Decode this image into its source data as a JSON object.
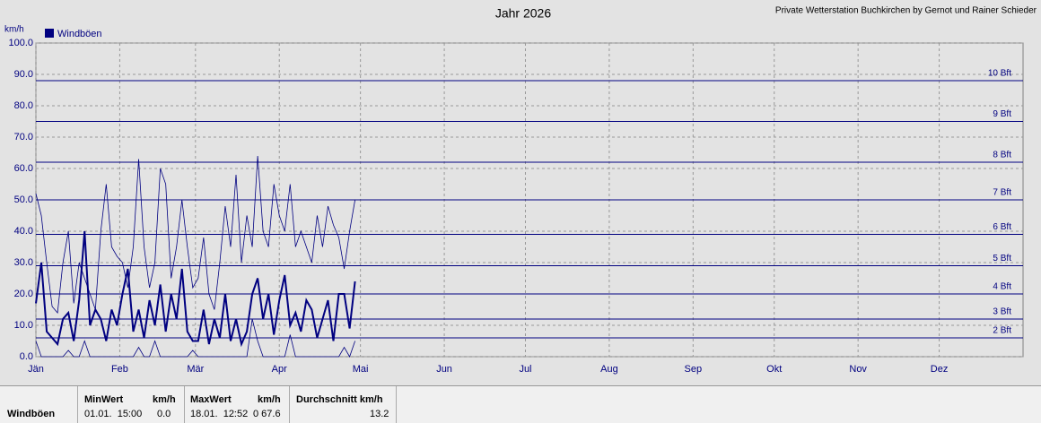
{
  "chart_data": {
    "type": "line",
    "title": "Jahr 2026",
    "credit": "Private Wetterstation Buchkirchen by Gernot und Rainer Schieder",
    "y_label": "km/h",
    "xlim": [
      0,
      365
    ],
    "xticks": [
      {
        "value": 0,
        "label": "Jän"
      },
      {
        "value": 31,
        "label": "Feb"
      },
      {
        "value": 59,
        "label": "Mär"
      },
      {
        "value": 90,
        "label": "Apr"
      },
      {
        "value": 120,
        "label": "Mai"
      },
      {
        "value": 151,
        "label": "Jun"
      },
      {
        "value": 181,
        "label": "Jul"
      },
      {
        "value": 212,
        "label": "Aug"
      },
      {
        "value": 243,
        "label": "Sep"
      },
      {
        "value": 273,
        "label": "Okt"
      },
      {
        "value": 304,
        "label": "Nov"
      },
      {
        "value": 334,
        "label": "Dez"
      }
    ],
    "ylim": [
      0,
      100
    ],
    "yticks": [
      {
        "value": 0,
        "label": "0.0"
      },
      {
        "value": 10,
        "label": "10.0"
      },
      {
        "value": 20,
        "label": "20.0"
      },
      {
        "value": 30,
        "label": "30.0"
      },
      {
        "value": 40,
        "label": "40.0"
      },
      {
        "value": 50,
        "label": "50.0"
      },
      {
        "value": 60,
        "label": "60.0"
      },
      {
        "value": 70,
        "label": "70.0"
      },
      {
        "value": 80,
        "label": "80.0"
      },
      {
        "value": 90,
        "label": "90.0"
      },
      {
        "value": 100,
        "label": "100.0"
      }
    ],
    "grid": true,
    "reference_lines": [
      {
        "value": 6,
        "label": "2 Bft"
      },
      {
        "value": 12,
        "label": "3 Bft"
      },
      {
        "value": 20,
        "label": "4 Bft"
      },
      {
        "value": 29,
        "label": "5 Bft"
      },
      {
        "value": 39,
        "label": "6 Bft"
      },
      {
        "value": 50,
        "label": "7 Bft"
      },
      {
        "value": 62,
        "label": "8 Bft"
      },
      {
        "value": 75,
        "label": "9 Bft"
      },
      {
        "value": 88,
        "label": "10 Bft"
      }
    ],
    "x": [
      0,
      2,
      4,
      6,
      8,
      10,
      12,
      14,
      16,
      18,
      20,
      22,
      24,
      26,
      28,
      30,
      32,
      34,
      36,
      38,
      40,
      42,
      44,
      46,
      48,
      50,
      52,
      54,
      56,
      58,
      60,
      62,
      64,
      66,
      68,
      70,
      72,
      74,
      76,
      78,
      80,
      82,
      84,
      86,
      88,
      90,
      92,
      94,
      96,
      98,
      100,
      102,
      104,
      106,
      108,
      110,
      112,
      114,
      116,
      118
    ],
    "series": [
      {
        "name": "Windböen",
        "color": "#000080",
        "max_values": [
          52,
          45,
          30,
          16,
          14,
          30,
          40,
          17,
          30,
          25,
          20,
          15,
          40,
          55,
          35,
          32,
          30,
          22,
          35,
          63,
          35,
          22,
          30,
          60,
          55,
          25,
          35,
          50,
          35,
          22,
          25,
          38,
          20,
          15,
          30,
          48,
          35,
          58,
          30,
          45,
          35,
          64,
          40,
          35,
          55,
          45,
          40,
          55,
          35,
          40,
          35,
          30,
          45,
          35,
          48,
          42,
          38,
          28,
          40,
          50
        ],
        "values": [
          17,
          30,
          8,
          6,
          4,
          12,
          14,
          5,
          18,
          40,
          10,
          15,
          12,
          5,
          15,
          10,
          20,
          28,
          8,
          15,
          6,
          18,
          10,
          23,
          8,
          20,
          12,
          28,
          8,
          5,
          5,
          15,
          4,
          12,
          6,
          20,
          5,
          12,
          4,
          8,
          20,
          25,
          12,
          20,
          7,
          18,
          26,
          10,
          14,
          8,
          18,
          15,
          6,
          12,
          18,
          5,
          20,
          20,
          9,
          24
        ],
        "min_values": [
          5,
          0,
          0,
          0,
          0,
          0,
          2,
          0,
          0,
          5,
          0,
          0,
          0,
          0,
          0,
          0,
          0,
          0,
          0,
          3,
          0,
          0,
          5,
          0,
          0,
          0,
          0,
          0,
          0,
          2,
          0,
          0,
          0,
          0,
          0,
          0,
          0,
          0,
          0,
          0,
          12,
          5,
          0,
          0,
          0,
          0,
          0,
          7,
          0,
          0,
          0,
          0,
          0,
          0,
          0,
          0,
          0,
          3,
          0,
          5
        ]
      }
    ]
  },
  "table": {
    "row_label": "Windböen",
    "headers": [
      "MinWert",
      "km/h",
      "MaxWert",
      "km/h",
      "Durchschnitt km/h"
    ],
    "cells": [
      "01.01.  15:00",
      "0.0",
      "18.01.  12:52",
      "0 67.6",
      "13.2"
    ]
  }
}
